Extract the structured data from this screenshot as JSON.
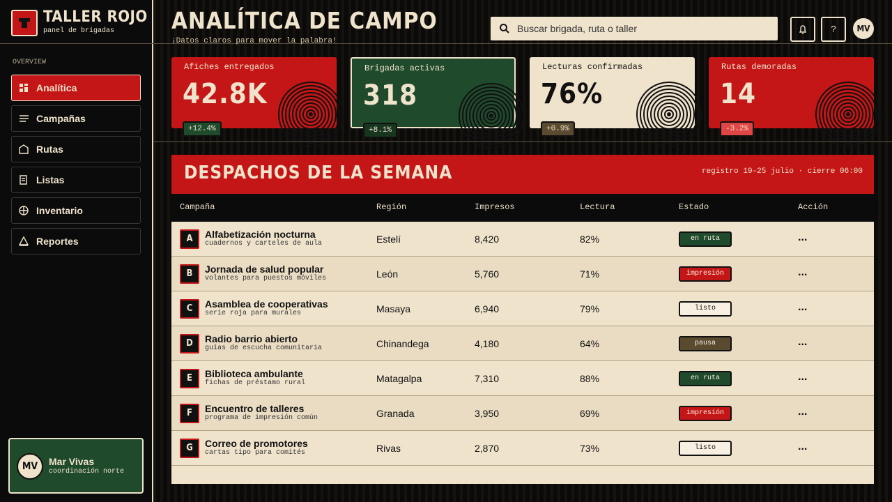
{
  "brand": {
    "name": "TALLER ROJO",
    "tagline": "panel de brigadas"
  },
  "nav": {
    "section": "OVERVIEW",
    "active": 0,
    "items": [
      "Analítica",
      "Campañas",
      "Rutas",
      "Listas",
      "Inventario",
      "Reportes"
    ]
  },
  "user": {
    "initials": "MV",
    "name": "Mar Vivas",
    "role": "coordinación norte"
  },
  "header": {
    "title": "ANALÍTICA DE CAMPO",
    "subtitle": "¡Datos claros para mover la palabra!",
    "search_placeholder": "Buscar brigada, ruta o taller",
    "help": "?",
    "avatar": "MV"
  },
  "kpis": [
    {
      "label": "Afiches entregados",
      "value": "42.8K",
      "delta": "+12.4%",
      "color": "#c41616",
      "delta_color": "#1f4a2c"
    },
    {
      "label": "Brigadas activas",
      "value": "318",
      "delta": "+8.1%",
      "color": "#1f4a2c",
      "delta_color": "#17361f"
    },
    {
      "label": "Lecturas confirmadas",
      "value": "76%",
      "delta": "+0.9%",
      "color": "#efe3cc",
      "delta_color": "#5a4a30"
    },
    {
      "label": "Rutas demoradas",
      "value": "14",
      "delta": "-3.2%",
      "color": "#c41616",
      "delta_color": "#e04545"
    }
  ],
  "table": {
    "title": "DESPACHOS DE LA SEMANA",
    "meta": "registro 19–25 julio · cierre 06:00",
    "columns": [
      "Campaña",
      "Región",
      "Impresos",
      "Lectura",
      "Estado",
      "Acción"
    ],
    "rows": [
      {
        "letter": "A",
        "name": "Alfabetización nocturna",
        "detail": "cuadernos y carteles de aula",
        "region": "Estelí",
        "printed": "8,420",
        "reading": "82%",
        "status": "en ruta",
        "status_color": "#1f4a2c",
        "action": "..."
      },
      {
        "letter": "B",
        "name": "Jornada de salud popular",
        "detail": "volantes para puestos móviles",
        "region": "León",
        "printed": "5,760",
        "reading": "71%",
        "status": "impresión",
        "status_color": "#c41616",
        "action": "..."
      },
      {
        "letter": "C",
        "name": "Asamblea de cooperativas",
        "detail": "serie roja para murales",
        "region": "Masaya",
        "printed": "6,940",
        "reading": "79%",
        "status": "listo",
        "status_color": "#f7f0e2",
        "action": "..."
      },
      {
        "letter": "D",
        "name": "Radio barrio abierto",
        "detail": "guías de escucha comunitaria",
        "region": "Chinandega",
        "printed": "4,180",
        "reading": "64%",
        "status": "pausa",
        "status_color": "#5a4a30",
        "action": "..."
      },
      {
        "letter": "E",
        "name": "Biblioteca ambulante",
        "detail": "fichas de préstamo rural",
        "region": "Matagalpa",
        "printed": "7,310",
        "reading": "88%",
        "status": "en ruta",
        "status_color": "#1f4a2c",
        "action": "..."
      },
      {
        "letter": "F",
        "name": "Encuentro de talleres",
        "detail": "programa de impresión común",
        "region": "Granada",
        "printed": "3,950",
        "reading": "69%",
        "status": "impresión",
        "status_color": "#c41616",
        "action": "..."
      },
      {
        "letter": "G",
        "name": "Correo de promotores",
        "detail": "cartas tipo para comités",
        "region": "Rivas",
        "printed": "2,870",
        "reading": "73%",
        "status": "listo",
        "status_color": "#f7f0e2",
        "action": "..."
      }
    ]
  }
}
